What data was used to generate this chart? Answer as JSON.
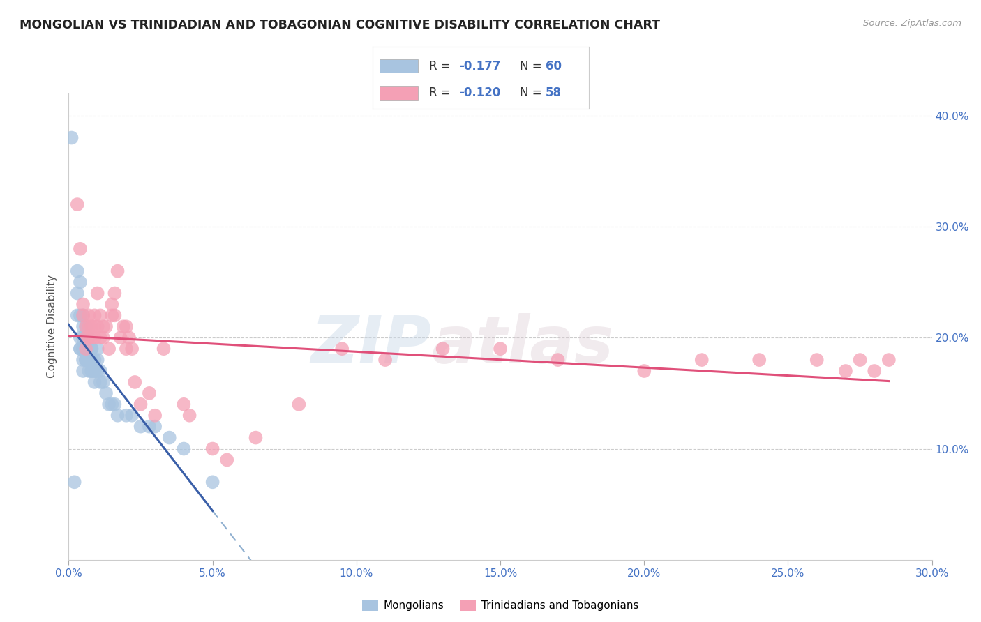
{
  "title": "MONGOLIAN VS TRINIDADIAN AND TOBAGONIAN COGNITIVE DISABILITY CORRELATION CHART",
  "source": "Source: ZipAtlas.com",
  "ylabel": "Cognitive Disability",
  "xlim": [
    0.0,
    0.3
  ],
  "ylim": [
    0.0,
    0.42
  ],
  "yticks": [
    0.1,
    0.2,
    0.3,
    0.4
  ],
  "xticks": [
    0.0,
    0.05,
    0.1,
    0.15,
    0.2,
    0.25,
    0.3
  ],
  "legend_r_mongolian": "-0.177",
  "legend_n_mongolian": "60",
  "legend_r_trinidadian": "-0.120",
  "legend_n_trinidadian": "58",
  "mongolian_color": "#a8c4e0",
  "trinidadian_color": "#f4a0b5",
  "trend_mongolian_color": "#3a5fa8",
  "trend_trinidadian_color": "#e0507a",
  "trend_dashed_color": "#90b0d0",
  "watermark_zip": "ZIP",
  "watermark_atlas": "atlas",
  "background_color": "#ffffff",
  "mongolian_x": [
    0.001,
    0.002,
    0.003,
    0.003,
    0.003,
    0.004,
    0.004,
    0.004,
    0.004,
    0.004,
    0.005,
    0.005,
    0.005,
    0.005,
    0.005,
    0.005,
    0.005,
    0.006,
    0.006,
    0.006,
    0.006,
    0.006,
    0.006,
    0.006,
    0.007,
    0.007,
    0.007,
    0.007,
    0.007,
    0.007,
    0.007,
    0.008,
    0.008,
    0.008,
    0.008,
    0.008,
    0.008,
    0.009,
    0.009,
    0.009,
    0.009,
    0.01,
    0.01,
    0.01,
    0.011,
    0.011,
    0.012,
    0.013,
    0.014,
    0.015,
    0.016,
    0.017,
    0.02,
    0.022,
    0.025,
    0.028,
    0.03,
    0.035,
    0.04,
    0.05
  ],
  "mongolian_y": [
    0.38,
    0.07,
    0.26,
    0.24,
    0.22,
    0.19,
    0.2,
    0.22,
    0.19,
    0.25,
    0.19,
    0.18,
    0.21,
    0.2,
    0.22,
    0.19,
    0.17,
    0.19,
    0.18,
    0.21,
    0.18,
    0.2,
    0.19,
    0.18,
    0.18,
    0.19,
    0.17,
    0.19,
    0.2,
    0.18,
    0.18,
    0.19,
    0.18,
    0.17,
    0.19,
    0.18,
    0.17,
    0.18,
    0.17,
    0.17,
    0.16,
    0.19,
    0.18,
    0.17,
    0.16,
    0.17,
    0.16,
    0.15,
    0.14,
    0.14,
    0.14,
    0.13,
    0.13,
    0.13,
    0.12,
    0.12,
    0.12,
    0.11,
    0.1,
    0.07
  ],
  "trinidadian_x": [
    0.003,
    0.004,
    0.005,
    0.005,
    0.006,
    0.006,
    0.006,
    0.007,
    0.007,
    0.007,
    0.008,
    0.008,
    0.009,
    0.009,
    0.009,
    0.01,
    0.01,
    0.011,
    0.011,
    0.012,
    0.012,
    0.013,
    0.014,
    0.015,
    0.015,
    0.016,
    0.016,
    0.017,
    0.018,
    0.019,
    0.02,
    0.02,
    0.021,
    0.022,
    0.023,
    0.025,
    0.028,
    0.03,
    0.033,
    0.04,
    0.042,
    0.05,
    0.055,
    0.065,
    0.08,
    0.095,
    0.11,
    0.13,
    0.15,
    0.17,
    0.2,
    0.22,
    0.24,
    0.26,
    0.27,
    0.275,
    0.28,
    0.285
  ],
  "trinidadian_y": [
    0.32,
    0.28,
    0.23,
    0.22,
    0.21,
    0.2,
    0.19,
    0.22,
    0.21,
    0.2,
    0.2,
    0.21,
    0.22,
    0.21,
    0.2,
    0.21,
    0.24,
    0.22,
    0.2,
    0.21,
    0.2,
    0.21,
    0.19,
    0.23,
    0.22,
    0.24,
    0.22,
    0.26,
    0.2,
    0.21,
    0.21,
    0.19,
    0.2,
    0.19,
    0.16,
    0.14,
    0.15,
    0.13,
    0.19,
    0.14,
    0.13,
    0.1,
    0.09,
    0.11,
    0.14,
    0.19,
    0.18,
    0.19,
    0.19,
    0.18,
    0.17,
    0.18,
    0.18,
    0.18,
    0.17,
    0.18,
    0.17,
    0.18
  ]
}
